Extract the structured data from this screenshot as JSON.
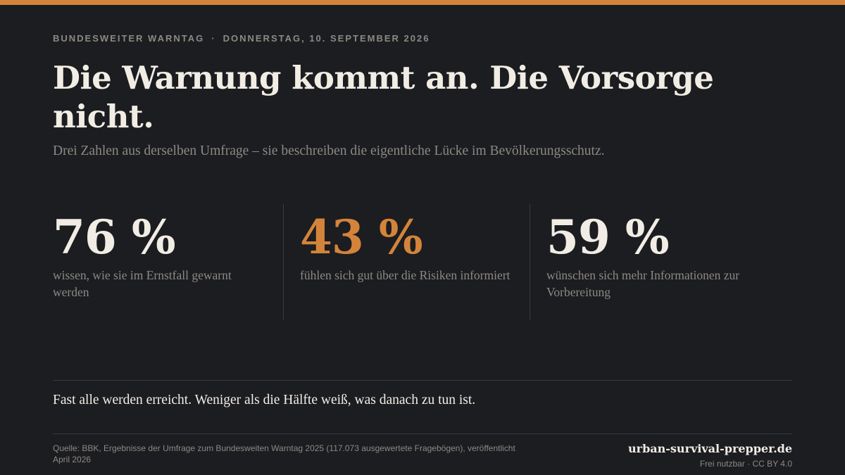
{
  "colors": {
    "background": "#1c1d21",
    "accent": "#d4843a",
    "text_primary": "#f2ede4",
    "text_muted": "#8d8983",
    "rule": "#3a3b40"
  },
  "header": {
    "kicker_event": "BUNDESWEITER WARNTAG",
    "kicker_separator": "·",
    "kicker_date": "DONNERSTAG, 10. SEPTEMBER 2026",
    "headline": "Die Warnung kommt an. Die Vorsorge nicht.",
    "subline": "Drei Zahlen aus derselben Umfrage – sie beschreiben die eigentliche Lücke im Bevölkerungsschutz."
  },
  "stats": [
    {
      "value": "76 %",
      "description": "wissen, wie sie im Ernstfall gewarnt werden"
    },
    {
      "value": "43 %",
      "description": "fühlen sich gut über die Risiken informiert"
    },
    {
      "value": "59 %",
      "description": "wünschen sich mehr Informationen zur Vorbereitung"
    }
  ],
  "conclusion": "Fast alle werden erreicht. Weniger als die Hälfte weiß, was danach zu tun ist.",
  "footer": {
    "source": "Quelle: BBK, Ergebnisse der Umfrage zum Bundesweiten Warntag 2025 (117.073 ausgewertete Fragebögen), veröffentlicht April 2026",
    "brand": "urban-survival-prepper.de",
    "license": "Frei nutzbar · CC BY 4.0"
  }
}
